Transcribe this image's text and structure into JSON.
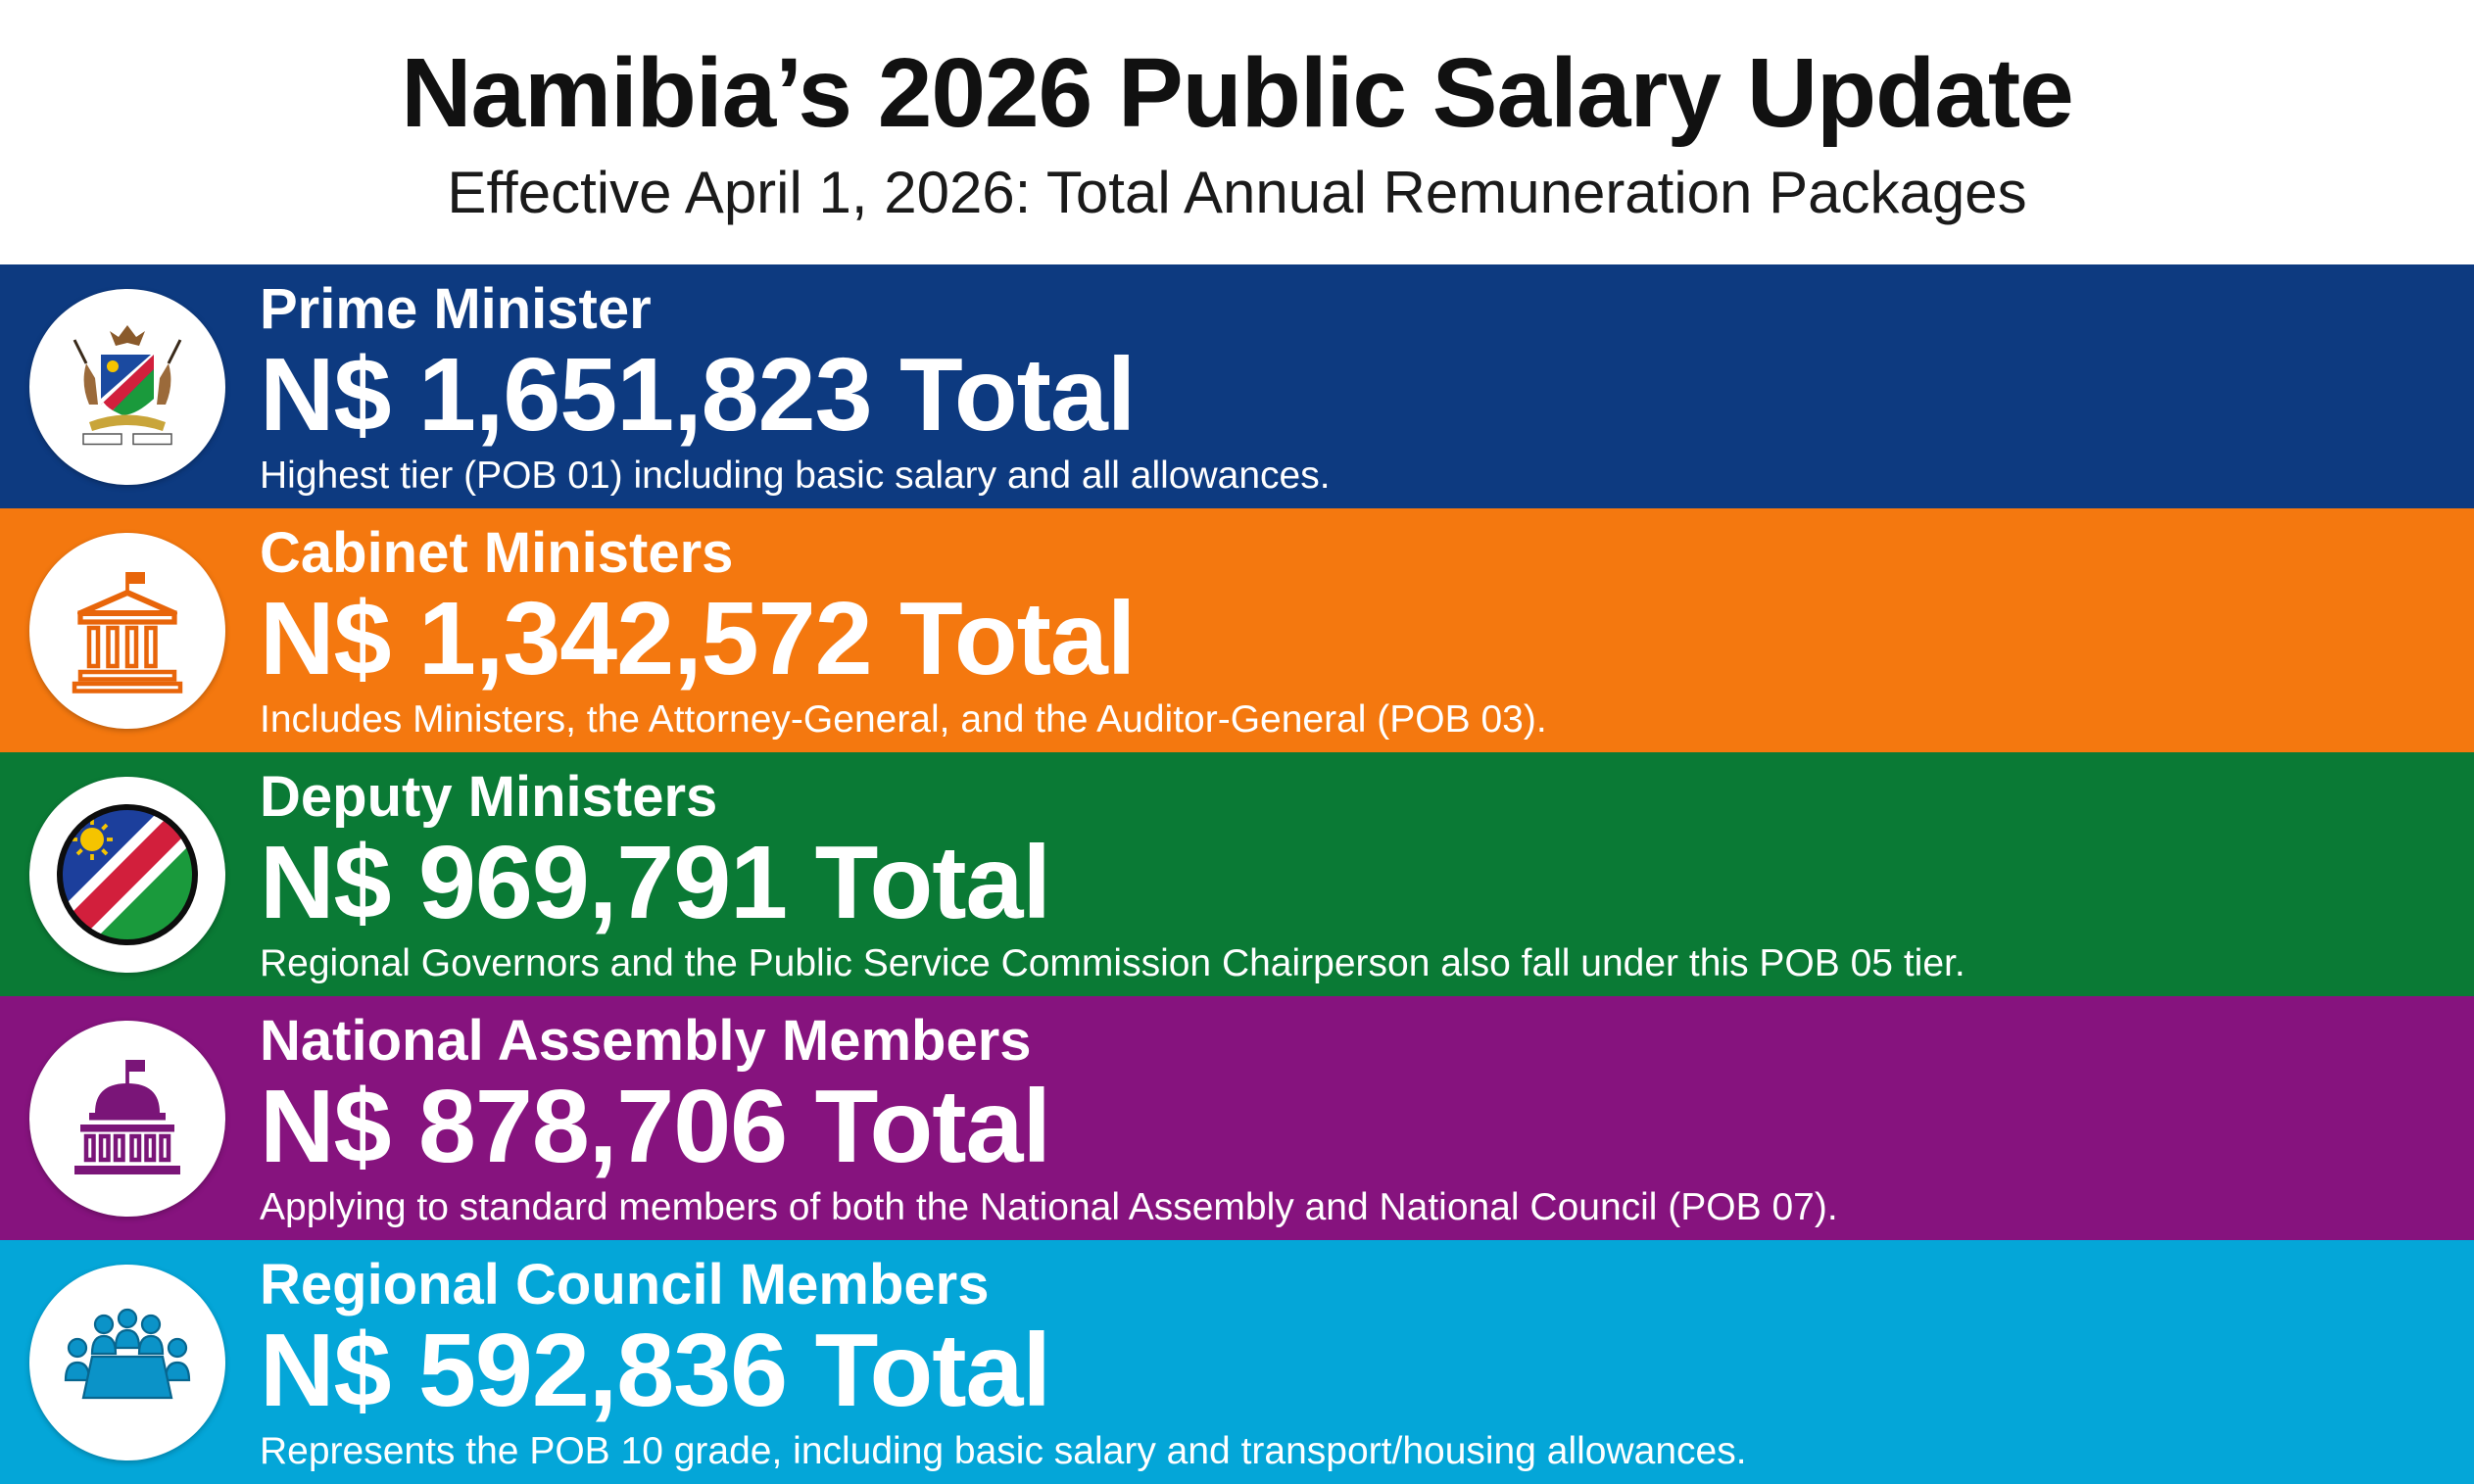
{
  "header": {
    "title": "Namibia’s 2026 Public Salary Update",
    "subtitle": "Effective April 1, 2026: Total Annual Remuneration Packages"
  },
  "tiers": [
    {
      "role": "Prime Minister",
      "amount": "N$ 1,651,823 Total",
      "description": "Highest tier (POB 01) including basic salary and all allowances.",
      "color": "#0d3a80",
      "icon": "coat-of-arms-icon"
    },
    {
      "role": "Cabinet Ministers",
      "amount": "N$ 1,342,572 Total",
      "description": "Includes Ministers, the Attorney-General, and the Auditor-General (POB 03).",
      "color": "#f4780f",
      "icon": "government-building-icon"
    },
    {
      "role": "Deputy Ministers",
      "amount": "N$ 969,791 Total",
      "description": "Regional Governors and the Public Service Commission Chairperson also fall under this POB 05 tier.",
      "color": "#0a7a35",
      "icon": "namibia-flag-icon"
    },
    {
      "role": "National Assembly Members",
      "amount": "N$ 878,706 Total",
      "description": "Applying to standard members of both the National Assembly and National Council (POB 07).",
      "color": "#86137e",
      "icon": "parliament-dome-icon"
    },
    {
      "role": "Regional Council Members",
      "amount": "N$ 592,836 Total",
      "description": "Represents the POB 10 grade, including basic salary and transport/housing allowances.",
      "color": "#04a6d8",
      "icon": "meeting-table-icon"
    }
  ]
}
